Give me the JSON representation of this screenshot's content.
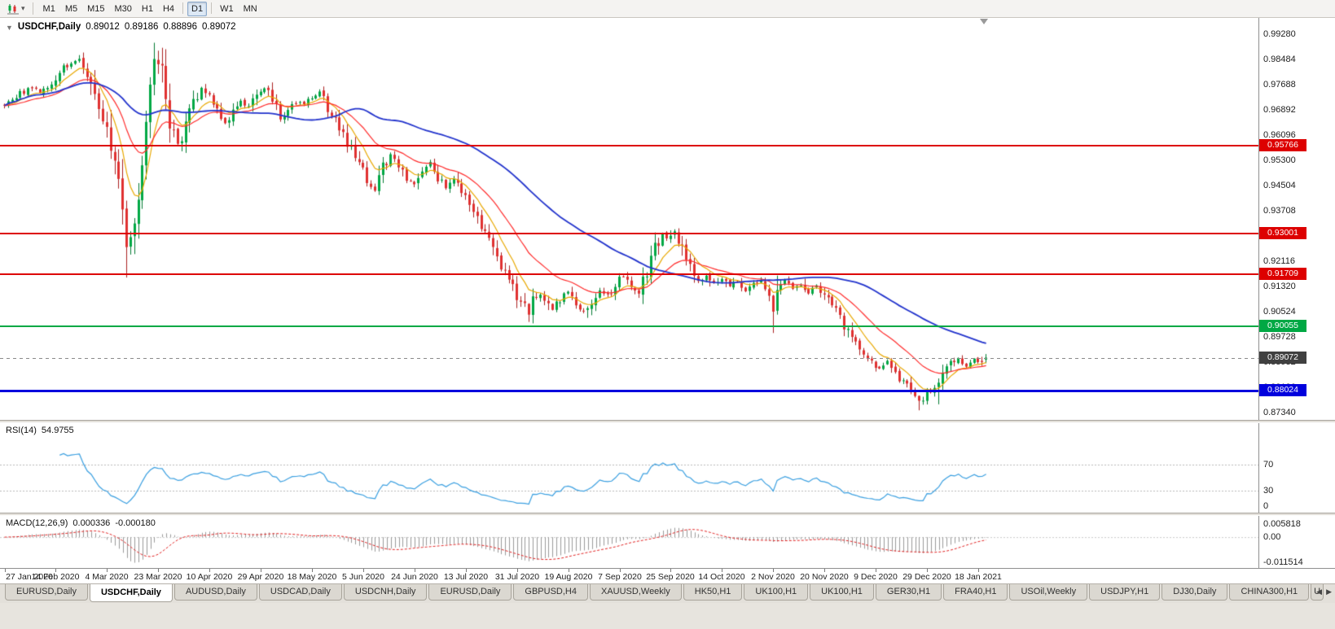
{
  "toolbar": {
    "dropdown_icon": "▾",
    "timeframes": [
      "M1",
      "M5",
      "M15",
      "M30",
      "H1",
      "H4",
      "D1",
      "W1",
      "MN"
    ],
    "active_timeframe": "D1"
  },
  "quote": {
    "collapse_icon": "▼",
    "symbol_period": "USDCHF,Daily",
    "open": "0.89012",
    "high": "0.89186",
    "low": "0.88896",
    "close": "0.89072"
  },
  "price_axis": {
    "labels": [
      "0.99280",
      "0.98484",
      "0.97688",
      "0.96892",
      "0.96096",
      "0.95300",
      "0.94504",
      "0.93708",
      "0.92912",
      "0.92116",
      "0.91320",
      "0.90524",
      "0.89728",
      "0.88932",
      "0.88136",
      "0.87340"
    ]
  },
  "rsi_panel": {
    "name": "RSI(14)",
    "value": "54.9755",
    "axis_labels": [
      "70",
      "30",
      "0"
    ],
    "axis_values": [
      70,
      30,
      0
    ],
    "line_color": "#3a9fe0"
  },
  "macd_panel": {
    "name": "MACD(12,26,9)",
    "main_value": "0.000336",
    "signal_value": "-0.000180",
    "axis_labels": [
      "0.005818",
      "0.00",
      "-0.011514"
    ],
    "axis_values": [
      0.005818,
      0,
      -0.011514
    ],
    "histogram_color": "#9a9a9a",
    "signal_color": "#e02020"
  },
  "date_axis": {
    "labels": [
      "27 Jan 2020",
      "14 Feb 2020",
      "4 Mar 2020",
      "23 Mar 2020",
      "10 Apr 2020",
      "29 Apr 2020",
      "18 May 2020",
      "5 Jun 2020",
      "24 Jun 2020",
      "13 Jul 2020",
      "31 Jul 2020",
      "19 Aug 2020",
      "7 Sep 2020",
      "25 Sep 2020",
      "14 Oct 2020",
      "2 Nov 2020",
      "20 Nov 2020",
      "9 Dec 2020",
      "29 Dec 2020",
      "18 Jan 2021"
    ]
  },
  "tabs": {
    "items": [
      "EURUSD,Daily",
      "USDCHF,Daily",
      "AUDUSD,Daily",
      "USDCAD,Daily",
      "USDCNH,Daily",
      "EURUSD,Daily",
      "GBPUSD,H4",
      "XAUUSD,Weekly",
      "HK50,H1",
      "UK100,H1",
      "UK100,H1",
      "GER30,H1",
      "FRA40,H1",
      "USOil,Weekly",
      "USDJPY,H1",
      "DJ30,Daily",
      "CHINA300,H1"
    ],
    "active_index": 1,
    "partial_last_label": "U",
    "scroll_left_icon": "◀",
    "scroll_right_icon": "▶"
  },
  "chart_data": {
    "type": "candlestick",
    "symbol": "USDCHF",
    "period": "Daily",
    "current_bar": {
      "open": 0.89012,
      "high": 0.89186,
      "low": 0.88896,
      "close": 0.89072
    },
    "y_range": [
      0.8734,
      0.9928
    ],
    "bar_count": 250,
    "bars_per_date_tick": 13,
    "up_color": "#00a844",
    "up_border": "#007a30",
    "down_color": "#e03030",
    "down_border": "#aa1f1f",
    "moving_averages": [
      {
        "period": 8,
        "method": "ema",
        "color": "#e8a800"
      },
      {
        "period": 21,
        "method": "ema",
        "color": "#ff2a2a"
      },
      {
        "period": 55,
        "method": "sma",
        "color": "#2233cc"
      }
    ],
    "horizontal_levels": [
      {
        "price": 0.95766,
        "label": "0.95766",
        "color": "#dd0000"
      },
      {
        "price": 0.93001,
        "label": "0.93001",
        "color": "#dd0000"
      },
      {
        "price": 0.91709,
        "label": "0.91709",
        "color": "#dd0000"
      },
      {
        "price": 0.90055,
        "label": "0.90055",
        "color": "#00a844"
      },
      {
        "price": 0.88024,
        "label": "0.88024",
        "color": "#0000dd"
      }
    ],
    "current_price_line": {
      "price": 0.89072,
      "label": "0.89072",
      "badge_color": "#404040"
    },
    "close_anchors": [
      [
        0,
        0.9705
      ],
      [
        3,
        0.973
      ],
      [
        6,
        0.9758
      ],
      [
        9,
        0.9744
      ],
      [
        12,
        0.9772
      ],
      [
        14,
        0.9812
      ],
      [
        16,
        0.983
      ],
      [
        19,
        0.984
      ],
      [
        21,
        0.9795
      ],
      [
        23,
        0.9725
      ],
      [
        25,
        0.965
      ],
      [
        27,
        0.958
      ],
      [
        29,
        0.945
      ],
      [
        31,
        0.924
      ],
      [
        33,
        0.933
      ],
      [
        35,
        0.952
      ],
      [
        37,
        0.976
      ],
      [
        38,
        0.9855
      ],
      [
        40,
        0.98
      ],
      [
        42,
        0.965
      ],
      [
        44,
        0.958
      ],
      [
        46,
        0.964
      ],
      [
        48,
        0.9715
      ],
      [
        50,
        0.9755
      ],
      [
        52,
        0.973
      ],
      [
        54,
        0.968
      ],
      [
        56,
        0.965
      ],
      [
        58,
        0.9685
      ],
      [
        60,
        0.9715
      ],
      [
        62,
        0.9695
      ],
      [
        64,
        0.9735
      ],
      [
        66,
        0.9755
      ],
      [
        68,
        0.9715
      ],
      [
        70,
        0.966
      ],
      [
        72,
        0.9685
      ],
      [
        74,
        0.9715
      ],
      [
        76,
        0.97
      ],
      [
        78,
        0.973
      ],
      [
        80,
        0.9745
      ],
      [
        82,
        0.97
      ],
      [
        84,
        0.9655
      ],
      [
        86,
        0.9605
      ],
      [
        88,
        0.956
      ],
      [
        90,
        0.9515
      ],
      [
        92,
        0.947
      ],
      [
        94,
        0.944
      ],
      [
        96,
        0.9505
      ],
      [
        98,
        0.9545
      ],
      [
        100,
        0.951
      ],
      [
        102,
        0.9475
      ],
      [
        104,
        0.946
      ],
      [
        106,
        0.9505
      ],
      [
        108,
        0.952
      ],
      [
        110,
        0.947
      ],
      [
        112,
        0.9445
      ],
      [
        114,
        0.9465
      ],
      [
        116,
        0.9425
      ],
      [
        118,
        0.9385
      ],
      [
        120,
        0.9355
      ],
      [
        122,
        0.9305
      ],
      [
        124,
        0.925
      ],
      [
        126,
        0.92
      ],
      [
        128,
        0.916
      ],
      [
        130,
        0.9105
      ],
      [
        132,
        0.907
      ],
      [
        133,
        0.9045
      ],
      [
        135,
        0.911
      ],
      [
        137,
        0.909
      ],
      [
        139,
        0.9055
      ],
      [
        141,
        0.909
      ],
      [
        143,
        0.911
      ],
      [
        145,
        0.9075
      ],
      [
        147,
        0.905
      ],
      [
        149,
        0.909
      ],
      [
        151,
        0.9125
      ],
      [
        153,
        0.9105
      ],
      [
        155,
        0.914
      ],
      [
        157,
        0.9165
      ],
      [
        159,
        0.914
      ],
      [
        161,
        0.9115
      ],
      [
        163,
        0.918
      ],
      [
        165,
        0.925
      ],
      [
        167,
        0.93
      ],
      [
        168,
        0.928
      ],
      [
        170,
        0.9305
      ],
      [
        172,
        0.9245
      ],
      [
        174,
        0.9185
      ],
      [
        176,
        0.915
      ],
      [
        178,
        0.917
      ],
      [
        180,
        0.914
      ],
      [
        182,
        0.916
      ],
      [
        184,
        0.913
      ],
      [
        186,
        0.915
      ],
      [
        188,
        0.912
      ],
      [
        190,
        0.914
      ],
      [
        192,
        0.9155
      ],
      [
        194,
        0.912
      ],
      [
        195,
        0.905
      ],
      [
        196,
        0.9125
      ],
      [
        198,
        0.915
      ],
      [
        200,
        0.913
      ],
      [
        202,
        0.914
      ],
      [
        204,
        0.911
      ],
      [
        206,
        0.913
      ],
      [
        208,
        0.91
      ],
      [
        210,
        0.907
      ],
      [
        212,
        0.903
      ],
      [
        214,
        0.899
      ],
      [
        216,
        0.895
      ],
      [
        218,
        0.892
      ],
      [
        220,
        0.889
      ],
      [
        222,
        0.8875
      ],
      [
        224,
        0.889
      ],
      [
        226,
        0.886
      ],
      [
        228,
        0.883
      ],
      [
        230,
        0.88
      ],
      [
        232,
        0.877
      ],
      [
        234,
        0.88
      ],
      [
        236,
        0.881
      ],
      [
        238,
        0.885
      ],
      [
        240,
        0.889
      ],
      [
        242,
        0.891
      ],
      [
        244,
        0.8885
      ],
      [
        246,
        0.89
      ],
      [
        247,
        0.889
      ],
      [
        248,
        0.8902
      ],
      [
        249,
        0.89072
      ]
    ],
    "wick_overrides": {
      "19": {
        "high": 0.9862
      },
      "31": {
        "low": 0.916
      },
      "38": {
        "high": 0.9901
      },
      "133": {
        "low": 0.902
      },
      "195": {
        "low": 0.8985
      },
      "232": {
        "low": 0.8741
      },
      "237": {
        "low": 0.876
      }
    },
    "note": "candles synthesized from close_anchors approximating the visible chart"
  }
}
